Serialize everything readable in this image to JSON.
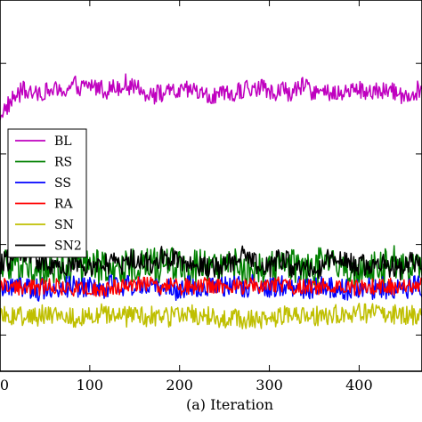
{
  "chart_data": {
    "type": "line",
    "xlabel": "(a) Iteration",
    "ylabel": "",
    "title": "",
    "xlim": [
      0,
      470
    ],
    "ylim": [
      0,
      410
    ],
    "x_ticks": [
      0,
      100,
      200,
      300,
      400
    ],
    "x_tick_labels": [
      "0",
      "100",
      "200",
      "300",
      "400"
    ],
    "y_ticks": [
      40,
      140,
      240,
      340
    ],
    "grid": false,
    "legend_position": "center-left",
    "series": [
      {
        "name": "BL",
        "color": "#bf00bf",
        "mean": 310,
        "noise": 10,
        "drift": 6,
        "start_dip": true
      },
      {
        "name": "RS",
        "color": "#008000",
        "mean": 115,
        "noise": 20,
        "drift": 5
      },
      {
        "name": "SS",
        "color": "#0000ff",
        "mean": 92,
        "noise": 12,
        "drift": 4
      },
      {
        "name": "RA",
        "color": "#ff0000",
        "mean": 95,
        "noise": 9,
        "drift": 3
      },
      {
        "name": "SN",
        "color": "#bfbf00",
        "mean": 60,
        "noise": 11,
        "drift": 4
      },
      {
        "name": "SN2",
        "color": "#000000",
        "mean": 120,
        "noise": 12,
        "drift": 8
      }
    ]
  }
}
